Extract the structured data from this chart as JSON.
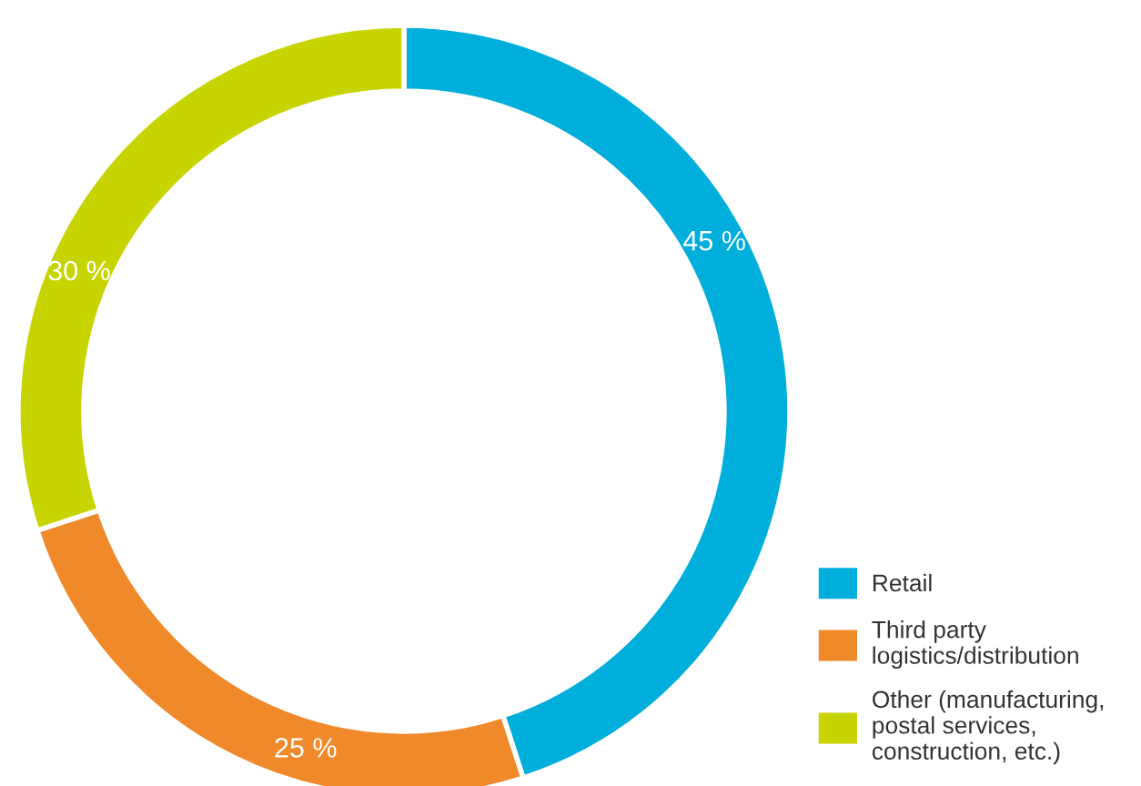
{
  "chart_data": {
    "type": "donut",
    "categories": [
      "Retail",
      "Third party\nlogistics/distribution",
      "Other (manufacturing,\npostal services,\nconstruction, etc.)"
    ],
    "values": [
      45,
      25,
      30
    ],
    "colors": [
      "#00aedb",
      "#f0892a",
      "#c8d400"
    ],
    "value_labels": [
      "45 %",
      "25 %",
      "30 %"
    ],
    "legend": "bottom right"
  }
}
